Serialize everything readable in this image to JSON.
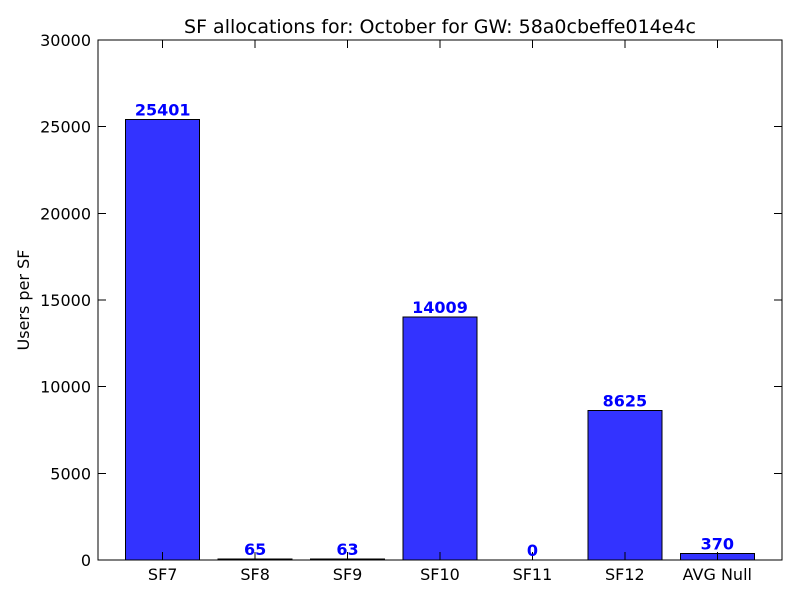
{
  "chart_data": {
    "type": "bar",
    "title": "SF allocations for: October for GW: 58a0cbeffe014e4c",
    "xlabel": "",
    "ylabel": "Users per SF",
    "categories": [
      "SF7",
      "SF8",
      "SF9",
      "SF10",
      "SF11",
      "SF12",
      "AVG Null"
    ],
    "values": [
      25401,
      65,
      63,
      14009,
      0,
      8625,
      370
    ],
    "data_labels": [
      "25401",
      "65",
      "63",
      "14009",
      "0",
      "8625",
      "370"
    ],
    "ylim": [
      0,
      30000
    ],
    "yticks": [
      0,
      5000,
      10000,
      15000,
      20000,
      25000,
      30000
    ],
    "ytick_labels": [
      "0",
      "5000",
      "10000",
      "15000",
      "20000",
      "25000",
      "30000"
    ],
    "grid": false,
    "bar_color": "#3333ff",
    "label_color": "#0000ff"
  }
}
